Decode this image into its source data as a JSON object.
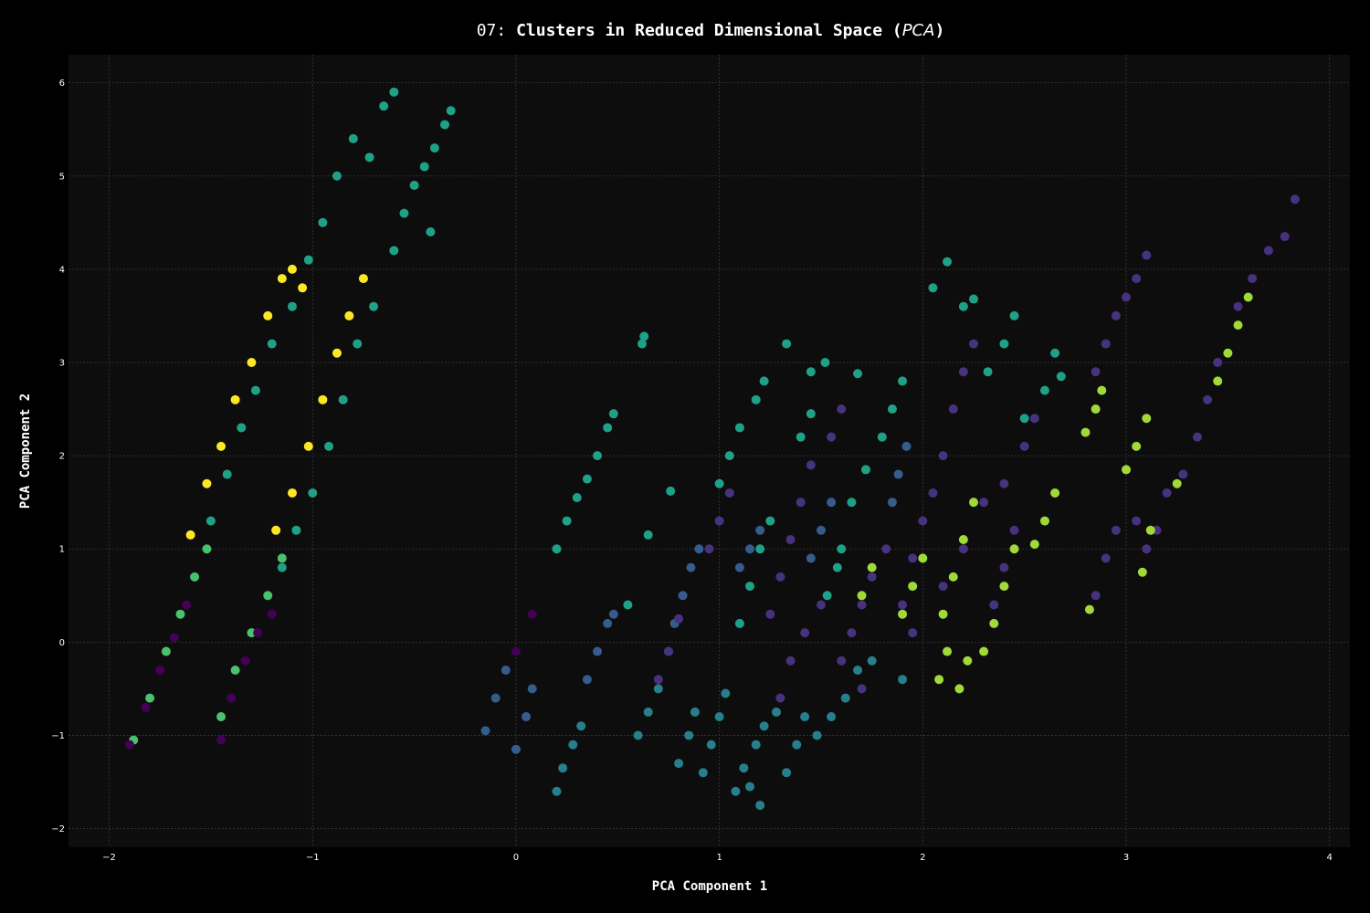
{
  "chart_data": {
    "type": "scatter",
    "title": {
      "prefix": "07: ",
      "main": "Clusters in Reduced Dimensional Space (",
      "italic": "PCA",
      "suffix": ")"
    },
    "xlabel": "PCA Component 1",
    "ylabel": "PCA Component 2",
    "xlim": [
      -2.2,
      4.1
    ],
    "ylim": [
      -2.2,
      6.3
    ],
    "xticks": [
      -2,
      -1,
      0,
      1,
      2,
      3,
      4
    ],
    "yticks": [
      -2,
      -1,
      0,
      1,
      2,
      3,
      4,
      5,
      6
    ],
    "xtick_labels": [
      "−2",
      "−1",
      "0",
      "1",
      "2",
      "3",
      "4"
    ],
    "ytick_labels": [
      "−2",
      "−1",
      "0",
      "1",
      "2",
      "3",
      "4",
      "5",
      "6"
    ],
    "grid": true,
    "colors": {
      "background": "#000000",
      "plot_background": "#0d0d0d",
      "cluster_0": "#440154",
      "cluster_1": "#46327e",
      "cluster_2": "#365c8d",
      "cluster_3": "#277f8e",
      "cluster_4": "#1fa187",
      "cluster_5": "#4ac16d",
      "cluster_6": "#a0da39",
      "cluster_7": "#fde725"
    },
    "series": [
      {
        "color": "#4ac16d",
        "points": [
          [
            -1.88,
            -1.05
          ],
          [
            -1.8,
            -0.6
          ],
          [
            -1.72,
            -0.1
          ],
          [
            -1.65,
            0.3
          ],
          [
            -1.58,
            0.7
          ],
          [
            -1.52,
            1.0
          ],
          [
            -1.45,
            -0.8
          ],
          [
            -1.38,
            -0.3
          ],
          [
            -1.3,
            0.1
          ],
          [
            -1.22,
            0.5
          ],
          [
            -1.15,
            0.9
          ]
        ]
      },
      {
        "color": "#440154",
        "points": [
          [
            -1.9,
            -1.1
          ],
          [
            -1.82,
            -0.7
          ],
          [
            -1.75,
            -0.3
          ],
          [
            -1.68,
            0.05
          ],
          [
            -1.62,
            0.4
          ],
          [
            -1.45,
            -1.05
          ],
          [
            -1.4,
            -0.6
          ],
          [
            -1.33,
            -0.2
          ],
          [
            -1.27,
            0.1
          ],
          [
            -1.2,
            0.3
          ],
          [
            0.08,
            0.3
          ],
          [
            0.0,
            -0.1
          ]
        ]
      },
      {
        "color": "#fde725",
        "points": [
          [
            -1.6,
            1.15
          ],
          [
            -1.52,
            1.7
          ],
          [
            -1.45,
            2.1
          ],
          [
            -1.38,
            2.6
          ],
          [
            -1.3,
            3.0
          ],
          [
            -1.22,
            3.5
          ],
          [
            -1.15,
            3.9
          ],
          [
            -1.18,
            1.2
          ],
          [
            -1.1,
            1.6
          ],
          [
            -1.02,
            2.1
          ],
          [
            -0.95,
            2.6
          ],
          [
            -0.88,
            3.1
          ],
          [
            -0.82,
            3.5
          ],
          [
            -0.75,
            3.9
          ],
          [
            -1.1,
            4.0
          ],
          [
            -1.05,
            3.8
          ]
        ]
      },
      {
        "color": "#1fa187",
        "points": [
          [
            -1.5,
            1.3
          ],
          [
            -1.42,
            1.8
          ],
          [
            -1.35,
            2.3
          ],
          [
            -1.28,
            2.7
          ],
          [
            -1.2,
            3.2
          ],
          [
            -1.1,
            3.6
          ],
          [
            -1.02,
            4.1
          ],
          [
            -0.95,
            4.5
          ],
          [
            -0.88,
            5.0
          ],
          [
            -0.8,
            5.4
          ],
          [
            -0.72,
            5.2
          ],
          [
            -0.65,
            5.75
          ],
          [
            -0.6,
            5.9
          ],
          [
            -0.5,
            4.9
          ],
          [
            -0.45,
            5.1
          ],
          [
            -0.4,
            5.3
          ],
          [
            -0.32,
            5.7
          ],
          [
            -0.35,
            5.55
          ],
          [
            -0.42,
            4.4
          ],
          [
            -0.55,
            4.6
          ],
          [
            -0.6,
            4.2
          ],
          [
            -0.7,
            3.6
          ],
          [
            -0.78,
            3.2
          ],
          [
            -0.85,
            2.6
          ],
          [
            -0.92,
            2.1
          ],
          [
            -1.0,
            1.6
          ],
          [
            -1.08,
            1.2
          ],
          [
            -1.15,
            0.8
          ],
          [
            0.2,
            1.0
          ],
          [
            0.25,
            1.3
          ],
          [
            0.3,
            1.55
          ],
          [
            0.35,
            1.75
          ],
          [
            0.4,
            2.0
          ],
          [
            0.45,
            2.3
          ],
          [
            0.48,
            2.45
          ],
          [
            0.62,
            3.2
          ],
          [
            0.63,
            3.28
          ],
          [
            0.55,
            0.4
          ],
          [
            0.65,
            1.15
          ],
          [
            0.76,
            1.62
          ],
          [
            1.0,
            1.7
          ],
          [
            1.05,
            2.0
          ],
          [
            1.1,
            2.3
          ],
          [
            1.18,
            2.6
          ],
          [
            1.22,
            2.8
          ],
          [
            1.33,
            3.2
          ],
          [
            1.45,
            2.9
          ],
          [
            1.52,
            3.0
          ],
          [
            1.4,
            2.2
          ],
          [
            1.45,
            2.45
          ],
          [
            1.6,
            1.0
          ],
          [
            1.65,
            1.5
          ],
          [
            1.72,
            1.85
          ],
          [
            1.8,
            2.2
          ],
          [
            1.85,
            2.5
          ],
          [
            1.9,
            2.8
          ],
          [
            2.05,
            3.8
          ],
          [
            2.12,
            4.08
          ],
          [
            2.2,
            3.6
          ],
          [
            2.25,
            3.68
          ],
          [
            2.32,
            2.9
          ],
          [
            2.4,
            3.2
          ],
          [
            2.45,
            3.5
          ],
          [
            2.5,
            2.4
          ],
          [
            2.6,
            2.7
          ],
          [
            2.65,
            3.1
          ],
          [
            2.68,
            2.85
          ],
          [
            1.1,
            0.2
          ],
          [
            1.15,
            0.6
          ],
          [
            1.2,
            1.0
          ],
          [
            1.25,
            1.3
          ],
          [
            1.53,
            0.5
          ],
          [
            1.58,
            0.8
          ],
          [
            1.68,
            2.88
          ]
        ]
      },
      {
        "color": "#365c8d",
        "points": [
          [
            -0.15,
            -0.95
          ],
          [
            -0.1,
            -0.6
          ],
          [
            -0.05,
            -0.3
          ],
          [
            0.0,
            -1.15
          ],
          [
            0.05,
            -0.8
          ],
          [
            0.08,
            -0.5
          ],
          [
            0.35,
            -0.4
          ],
          [
            0.4,
            -0.1
          ],
          [
            0.45,
            0.2
          ],
          [
            0.48,
            0.3
          ],
          [
            0.75,
            -0.1
          ],
          [
            0.78,
            0.2
          ],
          [
            0.82,
            0.5
          ],
          [
            0.86,
            0.8
          ],
          [
            0.9,
            1.0
          ],
          [
            1.1,
            0.8
          ],
          [
            1.15,
            1.0
          ],
          [
            1.2,
            1.2
          ],
          [
            1.45,
            0.9
          ],
          [
            1.5,
            1.2
          ],
          [
            1.55,
            1.5
          ],
          [
            1.85,
            1.5
          ],
          [
            1.88,
            1.8
          ],
          [
            1.92,
            2.1
          ]
        ]
      },
      {
        "color": "#277f8e",
        "points": [
          [
            0.2,
            -1.6
          ],
          [
            0.23,
            -1.35
          ],
          [
            0.28,
            -1.1
          ],
          [
            0.32,
            -0.9
          ],
          [
            0.6,
            -1.0
          ],
          [
            0.65,
            -0.75
          ],
          [
            0.7,
            -0.5
          ],
          [
            0.8,
            -1.3
          ],
          [
            0.85,
            -1.0
          ],
          [
            0.88,
            -0.75
          ],
          [
            0.92,
            -1.4
          ],
          [
            0.96,
            -1.1
          ],
          [
            1.0,
            -0.8
          ],
          [
            1.03,
            -0.55
          ],
          [
            1.08,
            -1.6
          ],
          [
            1.12,
            -1.35
          ],
          [
            1.18,
            -1.1
          ],
          [
            1.22,
            -0.9
          ],
          [
            1.28,
            -0.75
          ],
          [
            1.33,
            -1.4
          ],
          [
            1.38,
            -1.1
          ],
          [
            1.42,
            -0.8
          ],
          [
            1.48,
            -1.0
          ],
          [
            1.55,
            -0.8
          ],
          [
            1.62,
            -0.6
          ],
          [
            1.68,
            -0.3
          ],
          [
            1.75,
            -0.2
          ],
          [
            1.9,
            -0.4
          ],
          [
            1.2,
            -1.75
          ],
          [
            1.15,
            -1.55
          ]
        ]
      },
      {
        "color": "#46327e",
        "points": [
          [
            0.7,
            -0.4
          ],
          [
            0.75,
            -0.1
          ],
          [
            0.8,
            0.25
          ],
          [
            0.95,
            1.0
          ],
          [
            1.0,
            1.3
          ],
          [
            1.05,
            1.6
          ],
          [
            1.25,
            0.3
          ],
          [
            1.3,
            0.7
          ],
          [
            1.35,
            1.1
          ],
          [
            1.4,
            1.5
          ],
          [
            1.45,
            1.9
          ],
          [
            1.3,
            -0.6
          ],
          [
            1.35,
            -0.2
          ],
          [
            1.42,
            0.1
          ],
          [
            1.5,
            0.4
          ],
          [
            1.6,
            -0.2
          ],
          [
            1.65,
            0.1
          ],
          [
            1.7,
            0.4
          ],
          [
            1.75,
            0.7
          ],
          [
            1.82,
            1.0
          ],
          [
            1.9,
            0.4
          ],
          [
            1.95,
            0.9
          ],
          [
            2.0,
            1.3
          ],
          [
            2.05,
            1.6
          ],
          [
            2.1,
            2.0
          ],
          [
            2.15,
            2.5
          ],
          [
            2.2,
            2.9
          ],
          [
            2.25,
            3.2
          ],
          [
            2.1,
            0.6
          ],
          [
            2.2,
            1.0
          ],
          [
            2.3,
            1.5
          ],
          [
            2.4,
            1.7
          ],
          [
            2.5,
            2.1
          ],
          [
            2.55,
            2.4
          ],
          [
            2.35,
            0.4
          ],
          [
            2.4,
            0.8
          ],
          [
            2.45,
            1.2
          ],
          [
            1.95,
            0.1
          ],
          [
            1.7,
            -0.5
          ],
          [
            2.85,
            2.9
          ],
          [
            2.9,
            3.2
          ],
          [
            2.95,
            3.5
          ],
          [
            3.0,
            3.7
          ],
          [
            3.05,
            3.9
          ],
          [
            3.1,
            4.15
          ],
          [
            2.85,
            0.5
          ],
          [
            2.9,
            0.9
          ],
          [
            2.95,
            1.2
          ],
          [
            3.05,
            1.3
          ],
          [
            3.1,
            1.0
          ],
          [
            3.15,
            1.2
          ],
          [
            3.2,
            1.6
          ],
          [
            3.28,
            1.8
          ],
          [
            3.35,
            2.2
          ],
          [
            3.4,
            2.6
          ],
          [
            3.45,
            3.0
          ],
          [
            3.55,
            3.6
          ],
          [
            3.62,
            3.9
          ],
          [
            3.7,
            4.2
          ],
          [
            3.78,
            4.35
          ],
          [
            3.83,
            4.75
          ],
          [
            1.55,
            2.2
          ],
          [
            1.6,
            2.5
          ]
        ]
      },
      {
        "color": "#a0da39",
        "points": [
          [
            1.7,
            0.5
          ],
          [
            1.75,
            0.8
          ],
          [
            1.9,
            0.3
          ],
          [
            1.95,
            0.6
          ],
          [
            2.0,
            0.9
          ],
          [
            2.1,
            0.3
          ],
          [
            2.15,
            0.7
          ],
          [
            2.2,
            1.1
          ],
          [
            2.25,
            1.5
          ],
          [
            2.08,
            -0.4
          ],
          [
            2.12,
            -0.1
          ],
          [
            2.18,
            -0.5
          ],
          [
            2.22,
            -0.2
          ],
          [
            2.3,
            -0.1
          ],
          [
            2.35,
            0.2
          ],
          [
            2.4,
            0.6
          ],
          [
            2.45,
            1.0
          ],
          [
            2.55,
            1.05
          ],
          [
            2.6,
            1.3
          ],
          [
            2.65,
            1.6
          ],
          [
            2.8,
            2.25
          ],
          [
            2.85,
            2.5
          ],
          [
            2.88,
            2.7
          ],
          [
            2.82,
            0.35
          ],
          [
            3.0,
            1.85
          ],
          [
            3.05,
            2.1
          ],
          [
            3.1,
            2.4
          ],
          [
            3.08,
            0.75
          ],
          [
            3.12,
            1.2
          ],
          [
            3.45,
            2.8
          ],
          [
            3.5,
            3.1
          ],
          [
            3.55,
            3.4
          ],
          [
            3.6,
            3.7
          ],
          [
            3.25,
            1.7
          ]
        ]
      }
    ]
  }
}
